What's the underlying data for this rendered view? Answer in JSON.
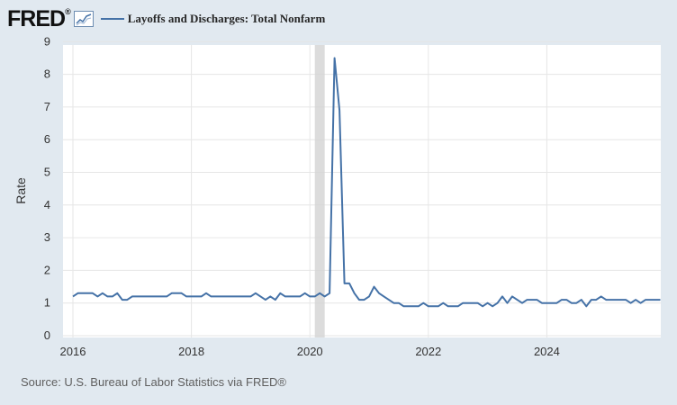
{
  "header": {
    "logo": "FRED",
    "logo_mark": "®",
    "icon": "line-graph-icon"
  },
  "source": "Source: U.S. Bureau of Labor Statistics via FRED®",
  "chart_data": {
    "type": "line",
    "title": "",
    "xlabel": "",
    "ylabel": "Rate",
    "ylim": [
      0,
      9
    ],
    "yticks": [
      "0",
      "1",
      "2",
      "3",
      "4",
      "5",
      "6",
      "7",
      "8",
      "9"
    ],
    "xticks": [
      {
        "label": "2016",
        "year": 2016
      },
      {
        "label": "2018",
        "year": 2018
      },
      {
        "label": "2020",
        "year": 2020
      },
      {
        "label": "2022",
        "year": 2022
      },
      {
        "label": "2024",
        "year": 2024
      }
    ],
    "grid": true,
    "legend": "top",
    "line_color": "#4572a7",
    "recession_shading": {
      "start": "2020-02",
      "end": "2020-04",
      "color": "#d3d3d3"
    },
    "series": [
      {
        "name": "Layoffs and Discharges: Total Nonfarm",
        "dates": [
          "2016-01",
          "2016-02",
          "2016-03",
          "2016-04",
          "2016-05",
          "2016-06",
          "2016-07",
          "2016-08",
          "2016-09",
          "2016-10",
          "2016-11",
          "2016-12",
          "2017-01",
          "2017-02",
          "2017-03",
          "2017-04",
          "2017-05",
          "2017-06",
          "2017-07",
          "2017-08",
          "2017-09",
          "2017-10",
          "2017-11",
          "2017-12",
          "2018-01",
          "2018-02",
          "2018-03",
          "2018-04",
          "2018-05",
          "2018-06",
          "2018-07",
          "2018-08",
          "2018-09",
          "2018-10",
          "2018-11",
          "2018-12",
          "2019-01",
          "2019-02",
          "2019-03",
          "2019-04",
          "2019-05",
          "2019-06",
          "2019-07",
          "2019-08",
          "2019-09",
          "2019-10",
          "2019-11",
          "2019-12",
          "2020-01",
          "2020-02",
          "2020-03",
          "2020-04",
          "2020-05",
          "2020-06",
          "2020-07",
          "2020-08",
          "2020-09",
          "2020-10",
          "2020-11",
          "2020-12",
          "2021-01",
          "2021-02",
          "2021-03",
          "2021-04",
          "2021-05",
          "2021-06",
          "2021-07",
          "2021-08",
          "2021-09",
          "2021-10",
          "2021-11",
          "2021-12",
          "2022-01",
          "2022-02",
          "2022-03",
          "2022-04",
          "2022-05",
          "2022-06",
          "2022-07",
          "2022-08",
          "2022-09",
          "2022-10",
          "2022-11",
          "2022-12",
          "2023-01",
          "2023-02",
          "2023-03",
          "2023-04",
          "2023-05",
          "2023-06",
          "2023-07",
          "2023-08",
          "2023-09",
          "2023-10",
          "2023-11",
          "2023-12",
          "2024-01",
          "2024-02",
          "2024-03",
          "2024-04",
          "2024-05",
          "2024-06",
          "2024-07",
          "2024-08",
          "2024-09",
          "2024-10",
          "2024-11",
          "2024-12",
          "2025-01",
          "2025-02",
          "2025-03",
          "2025-04",
          "2025-05",
          "2025-06",
          "2025-07",
          "2025-08",
          "2025-09",
          "2025-10",
          "2025-11",
          "2025-12"
        ],
        "values": [
          1.2,
          1.3,
          1.3,
          1.3,
          1.3,
          1.2,
          1.3,
          1.2,
          1.2,
          1.3,
          1.1,
          1.1,
          1.2,
          1.2,
          1.2,
          1.2,
          1.2,
          1.2,
          1.2,
          1.2,
          1.3,
          1.3,
          1.3,
          1.2,
          1.2,
          1.2,
          1.2,
          1.3,
          1.2,
          1.2,
          1.2,
          1.2,
          1.2,
          1.2,
          1.2,
          1.2,
          1.2,
          1.3,
          1.2,
          1.1,
          1.2,
          1.1,
          1.3,
          1.2,
          1.2,
          1.2,
          1.2,
          1.3,
          1.2,
          1.2,
          1.3,
          1.2,
          1.3,
          8.5,
          6.9,
          1.6,
          1.6,
          1.3,
          1.1,
          1.1,
          1.2,
          1.5,
          1.3,
          1.2,
          1.1,
          1.0,
          1.0,
          0.9,
          0.9,
          0.9,
          0.9,
          1.0,
          0.9,
          0.9,
          0.9,
          1.0,
          0.9,
          0.9,
          0.9,
          1.0,
          1.0,
          1.0,
          1.0,
          0.9,
          1.0,
          0.9,
          1.0,
          1.2,
          1.0,
          1.2,
          1.1,
          1.0,
          1.1,
          1.1,
          1.1,
          1.0,
          1.0,
          1.0,
          1.0,
          1.1,
          1.1,
          1.0,
          1.0,
          1.1,
          0.9,
          1.1,
          1.1,
          1.2,
          1.1,
          1.1,
          1.1,
          1.1,
          1.1,
          1.0,
          1.1,
          1.0,
          1.1,
          1.1,
          1.1,
          1.1
        ]
      }
    ]
  }
}
